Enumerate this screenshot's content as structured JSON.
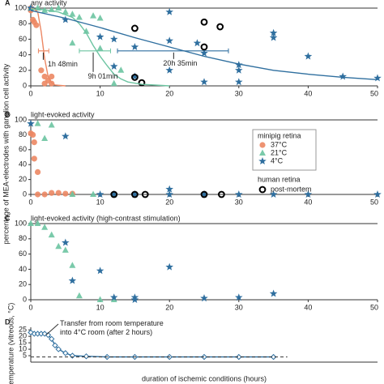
{
  "ylabel": "percentage of MEA-electrodes with ganglion cell activity",
  "chart_data": [
    {
      "type": "scatter",
      "letter": "A",
      "title": "any activity",
      "xlim": [
        0,
        50
      ],
      "xticks": [
        0,
        10,
        20,
        30,
        40,
        50
      ],
      "ylim": [
        0,
        100
      ],
      "yticks": [
        0,
        20,
        40,
        60,
        80,
        100
      ],
      "series": [
        {
          "name": "37°C",
          "color": "#ec8763",
          "marker": "circle",
          "x": [
            0,
            0,
            0.3,
            0.5,
            0.8,
            1.5,
            2,
            2,
            2.5,
            3,
            3
          ],
          "values": [
            100,
            97,
            85,
            82,
            78,
            20,
            12,
            3,
            7,
            3,
            12
          ]
        },
        {
          "name": "21°C",
          "color": "#6cc4a1",
          "marker": "triangle",
          "x": [
            0,
            1,
            2,
            3,
            4,
            5,
            6,
            7,
            9,
            10,
            8,
            6,
            10,
            13,
            12
          ],
          "values": [
            100,
            100,
            97,
            98,
            100,
            95,
            92,
            88,
            90,
            87,
            70,
            55,
            48,
            20,
            3
          ]
        },
        {
          "name": "4°C",
          "color": "#2f6f9f",
          "marker": "star",
          "x": [
            0,
            20,
            5,
            10,
            12,
            15,
            20,
            24,
            25,
            30,
            30,
            35,
            35,
            40,
            45,
            50,
            20,
            15,
            25,
            30,
            12
          ],
          "values": [
            100,
            95,
            85,
            63,
            60,
            50,
            58,
            55,
            42,
            27,
            20,
            68,
            62,
            38,
            12,
            10,
            20,
            12,
            5,
            5,
            25
          ]
        },
        {
          "name": "post-mortem",
          "color": "#000000",
          "marker": "ring",
          "x": [
            15,
            25,
            27.3,
            15,
            16,
            25
          ],
          "values": [
            74,
            82,
            76,
            11,
            4,
            50
          ]
        },
        {
          "type": "line",
          "color": "#ec8763",
          "x": [
            0,
            0.5,
            1,
            1.5,
            2,
            2.5,
            3,
            3.5,
            5
          ],
          "values": [
            100,
            99,
            95,
            70,
            35,
            12,
            4,
            1,
            0
          ]
        },
        {
          "type": "line",
          "color": "#6cc4a1",
          "x": [
            0,
            2,
            4,
            6,
            7,
            8,
            9,
            10,
            11,
            12,
            13,
            14,
            16,
            20
          ],
          "values": [
            99,
            98,
            95,
            88,
            80,
            68,
            52,
            38,
            26,
            15,
            9,
            5,
            2,
            0
          ]
        },
        {
          "type": "line",
          "color": "#2f6f9f",
          "x": [
            0,
            5,
            10,
            15,
            20,
            25,
            30,
            35,
            40,
            45,
            50
          ],
          "values": [
            97,
            87,
            75,
            62,
            50,
            38,
            28,
            20,
            15,
            11,
            8
          ]
        }
      ],
      "annotations": [
        {
          "text": "1h 48min",
          "x": 1.8,
          "lo": 1.1,
          "hi": 2.6,
          "y": 45,
          "color": "#ec8763"
        },
        {
          "text": "9h 01min",
          "x": 9,
          "lo": 7,
          "hi": 11.5,
          "y": 45,
          "color": "#6cc4a1"
        },
        {
          "text": "20h 35min",
          "x": 20.6,
          "lo": 12.5,
          "hi": 28.5,
          "y": 45,
          "color": "#2f6f9f"
        }
      ]
    },
    {
      "type": "scatter",
      "letter": "B",
      "title": "light-evoked activity",
      "xlim": [
        0,
        50
      ],
      "xticks": [
        0,
        10,
        20,
        30,
        40,
        50
      ],
      "ylim": [
        0,
        100
      ],
      "yticks": [
        0,
        20,
        40,
        60,
        80,
        100
      ],
      "legend_titles": [
        "minipig retina",
        "human retina"
      ],
      "series": [
        {
          "name": "37°C",
          "color": "#ec8763",
          "marker": "circle",
          "x": [
            0,
            0.3,
            0.5,
            0.5,
            1,
            1,
            2,
            3,
            4,
            5,
            6
          ],
          "values": [
            82,
            80,
            70,
            48,
            30,
            0,
            0,
            2,
            2,
            1,
            1
          ]
        },
        {
          "name": "21°C",
          "color": "#6cc4a1",
          "marker": "triangle",
          "x": [
            1,
            3,
            2,
            6,
            9,
            12
          ],
          "values": [
            95,
            93,
            75,
            0,
            0,
            0
          ]
        },
        {
          "name": "4°C",
          "color": "#2f6f9f",
          "marker": "star",
          "x": [
            0,
            5,
            10,
            15,
            20,
            20,
            25,
            30,
            35,
            40,
            50,
            12
          ],
          "values": [
            95,
            78,
            0,
            0,
            7,
            0,
            0,
            0,
            0,
            0,
            0,
            0
          ]
        },
        {
          "name": "post-mortem",
          "color": "#000000",
          "marker": "ring",
          "x": [
            12,
            15,
            16.5,
            25,
            27.5
          ],
          "values": [
            0,
            0,
            0,
            0,
            0
          ]
        }
      ]
    },
    {
      "type": "scatter",
      "letter": "C",
      "title": "light-evoked activity (high-contrast stimulation)",
      "xlim": [
        0,
        50
      ],
      "xticks": [
        0,
        10,
        20,
        30,
        40,
        50
      ],
      "ylim": [
        0,
        100
      ],
      "yticks": [
        0,
        20,
        40,
        60,
        80,
        100
      ],
      "series": [
        {
          "name": "21°C",
          "color": "#6cc4a1",
          "marker": "triangle",
          "x": [
            0,
            1,
            2,
            3,
            4,
            5,
            6,
            7,
            10,
            12
          ],
          "values": [
            100,
            100,
            95,
            85,
            70,
            65,
            45,
            5,
            0,
            0
          ]
        },
        {
          "name": "4°C",
          "color": "#2f6f9f",
          "marker": "star",
          "x": [
            5,
            6,
            10,
            15,
            20,
            35,
            30,
            25,
            12,
            15
          ],
          "values": [
            75,
            25,
            38,
            3,
            43,
            8,
            3,
            2,
            3,
            0
          ]
        }
      ]
    },
    {
      "type": "line",
      "letter": "D",
      "ylabel": "temperature (vitreous, °C)",
      "xlabel": "duration of ischemic conditions (hours)",
      "annotation": "Transfer from room temperature into 4°C room (after 2 hours)",
      "xlim": [
        0,
        50
      ],
      "ylim": [
        0,
        27
      ],
      "yticks": [
        5,
        10,
        15,
        20,
        25
      ],
      "reference": 4,
      "series": [
        {
          "color": "#2f6f9f",
          "marker": "diamond",
          "x": [
            0,
            0.5,
            1,
            1.5,
            2,
            2.5,
            3,
            3.5,
            4,
            5,
            6,
            8,
            11,
            15,
            20,
            25,
            30,
            35
          ],
          "values": [
            23,
            22,
            22,
            22,
            22,
            21,
            18,
            13,
            10,
            7,
            5,
            4.5,
            4,
            4,
            4,
            4,
            4,
            4
          ]
        }
      ]
    }
  ]
}
